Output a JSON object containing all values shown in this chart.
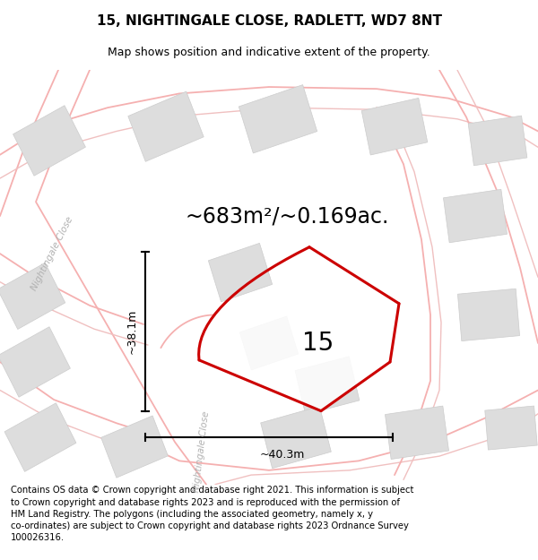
{
  "title_line1": "15, NIGHTINGALE CLOSE, RADLETT, WD7 8NT",
  "title_line2": "Map shows position and indicative extent of the property.",
  "area_text": "~683m²/~0.169ac.",
  "number_label": "15",
  "width_label": "~40.3m",
  "height_label": "~38.1m",
  "road_label_left": "Nightingale Close",
  "road_label_bottom": "Nightingale Close",
  "footer_text": "Contains OS data © Crown copyright and database right 2021. This information is subject to Crown copyright and database rights 2023 and is reproduced with the permission of HM Land Registry. The polygons (including the associated geometry, namely x, y co-ordinates) are subject to Crown copyright and database rights 2023 Ordnance Survey 100026316.",
  "road_color": "#f5b0b0",
  "road_color2": "#f0c0c0",
  "building_color": "#dddddd",
  "building_edge": "#cccccc",
  "plot_edge_color": "#cc0000",
  "plot_fill": "#ffffff",
  "title_fontsize": 11,
  "subtitle_fontsize": 9,
  "area_fontsize": 17,
  "number_fontsize": 20,
  "dim_fontsize": 9,
  "road_label_fontsize": 7.5,
  "footer_fontsize": 7.2
}
